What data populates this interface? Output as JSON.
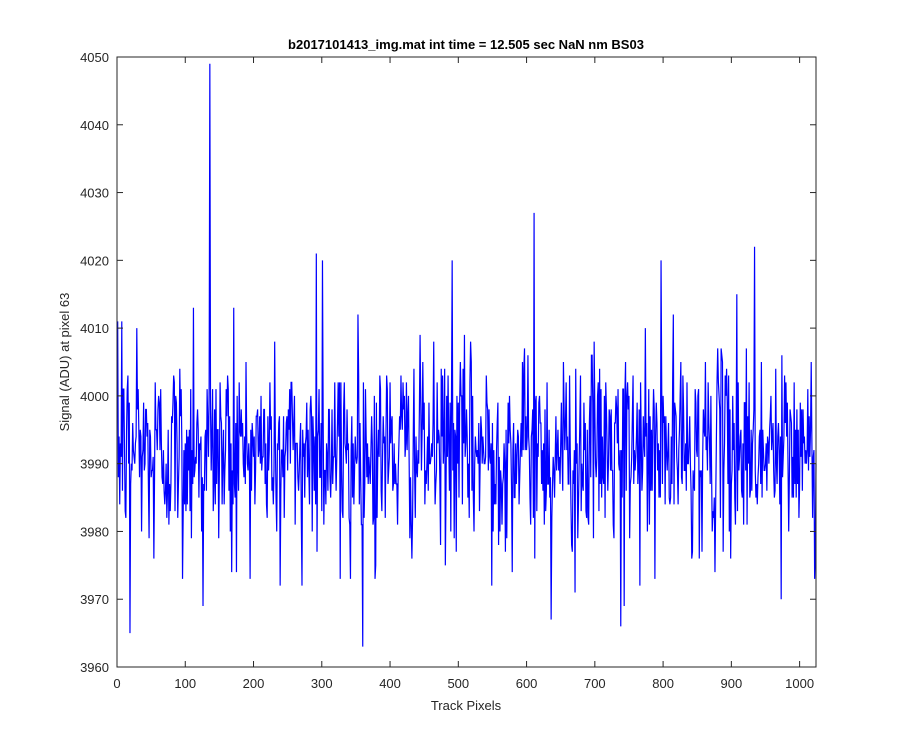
{
  "chart_data": {
    "type": "line",
    "title": "b2017101413_img.mat int time = 12.505 sec  NaN nm BS03",
    "xlabel": "Track Pixels",
    "ylabel": "Signal (ADU) at pixel 63",
    "xlim": [
      0,
      1024
    ],
    "ylim": [
      3960,
      4050
    ],
    "xticks": [
      0,
      100,
      200,
      300,
      400,
      500,
      600,
      700,
      800,
      900,
      1000
    ],
    "yticks": [
      3960,
      3970,
      3980,
      3990,
      4000,
      4010,
      4020,
      4030,
      4040,
      4050
    ],
    "grid": false,
    "legend": "none",
    "line_color": "#0000ff",
    "series": [
      {
        "n_points": 1024,
        "seed": 12345,
        "base_mean": 3992,
        "base_std": 7,
        "clip": [
          3962,
          4048
        ],
        "anchors": [
          {
            "x": 1,
            "y": 3988
          },
          {
            "x": 6,
            "y": 4011
          },
          {
            "x": 18,
            "y": 3965
          },
          {
            "x": 28,
            "y": 4010
          },
          {
            "x": 53,
            "y": 3976
          },
          {
            "x": 95,
            "y": 3973
          },
          {
            "x": 111,
            "y": 4013
          },
          {
            "x": 125,
            "y": 3969
          },
          {
            "x": 135,
            "y": 4049
          },
          {
            "x": 167,
            "y": 3974
          },
          {
            "x": 170,
            "y": 4013
          },
          {
            "x": 194,
            "y": 3973
          },
          {
            "x": 238,
            "y": 3972
          },
          {
            "x": 270,
            "y": 3972
          },
          {
            "x": 291,
            "y": 4021
          },
          {
            "x": 300,
            "y": 4020
          },
          {
            "x": 326,
            "y": 3973
          },
          {
            "x": 341,
            "y": 3973
          },
          {
            "x": 352,
            "y": 4012
          },
          {
            "x": 377,
            "y": 3973
          },
          {
            "x": 490,
            "y": 4020
          },
          {
            "x": 548,
            "y": 3972
          },
          {
            "x": 610,
            "y": 4027
          },
          {
            "x": 635,
            "y": 3967
          },
          {
            "x": 670,
            "y": 3971
          },
          {
            "x": 737,
            "y": 3966
          },
          {
            "x": 742,
            "y": 3969
          },
          {
            "x": 787,
            "y": 3973
          },
          {
            "x": 796,
            "y": 4020
          },
          {
            "x": 907,
            "y": 4015
          },
          {
            "x": 933,
            "y": 4022
          },
          {
            "x": 972,
            "y": 3970
          },
          {
            "x": 1022,
            "y": 3977
          }
        ]
      }
    ]
  }
}
